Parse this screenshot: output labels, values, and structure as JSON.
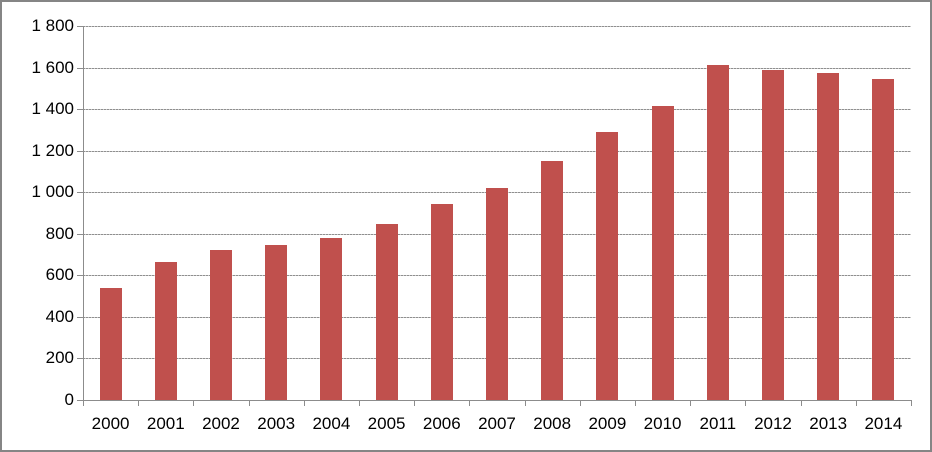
{
  "chart_data": {
    "type": "bar",
    "title": "",
    "xlabel": "",
    "ylabel": "",
    "categories": [
      "2000",
      "2001",
      "2002",
      "2003",
      "2004",
      "2005",
      "2006",
      "2007",
      "2008",
      "2009",
      "2010",
      "2011",
      "2012",
      "2013",
      "2014"
    ],
    "values": [
      540,
      665,
      720,
      745,
      780,
      845,
      945,
      1020,
      1150,
      1290,
      1415,
      1610,
      1590,
      1575,
      1545
    ],
    "ylim": [
      0,
      1800
    ],
    "ytick_step": 200,
    "ytick_labels": [
      "0",
      "200",
      "400",
      "600",
      "800",
      "1 000",
      "1 200",
      "1 400",
      "1 600",
      "1 800"
    ],
    "grid": true,
    "gridline_style": "dashed",
    "legend": false,
    "bar_color": "#C0504D",
    "axis_color": "#8C8C8C",
    "gridline_color": "#8F8F8F",
    "text_color": "#000000",
    "background_color": "#FFFFFF",
    "frame_border_color": "#858585"
  }
}
